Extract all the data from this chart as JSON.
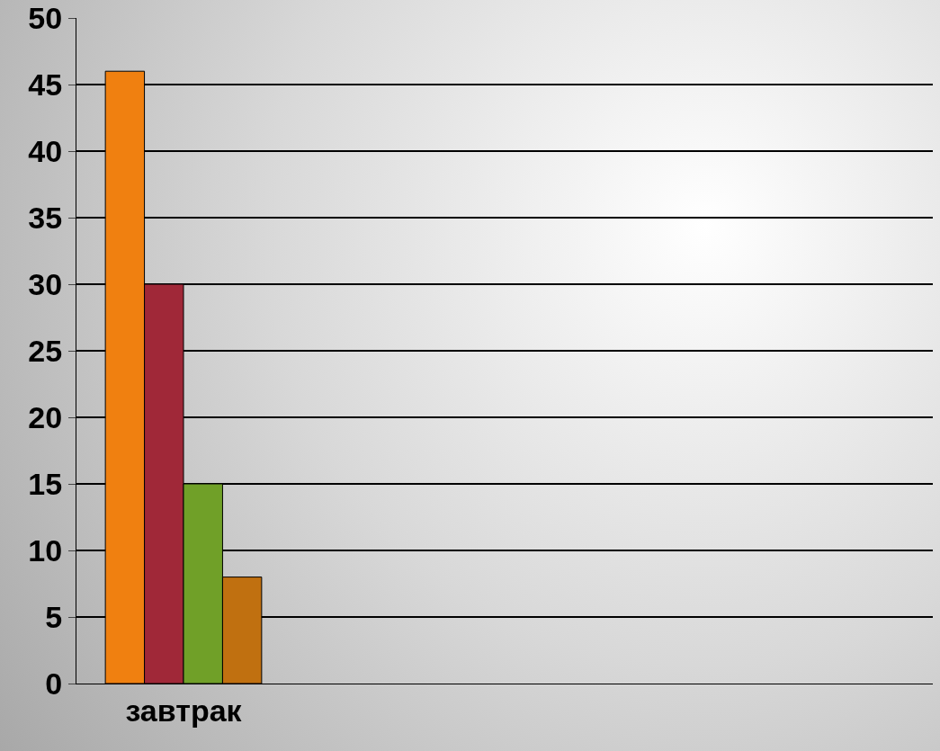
{
  "chart_data": {
    "type": "bar",
    "categories": [
      "завтрак",
      null,
      null,
      null
    ],
    "series": [
      {
        "color": "#f08010",
        "values": [
          46,
          null,
          null,
          null
        ]
      },
      {
        "color": "#a02838",
        "values": [
          30,
          null,
          null,
          null
        ]
      },
      {
        "color": "#70a028",
        "values": [
          15,
          null,
          null,
          null
        ]
      },
      {
        "color": "#c07010",
        "values": [
          8,
          null,
          null,
          null
        ]
      }
    ],
    "ylim": [
      0,
      50
    ],
    "yticks": [
      0,
      5,
      10,
      15,
      20,
      25,
      30,
      35,
      40,
      45,
      50
    ],
    "grid": "y"
  }
}
